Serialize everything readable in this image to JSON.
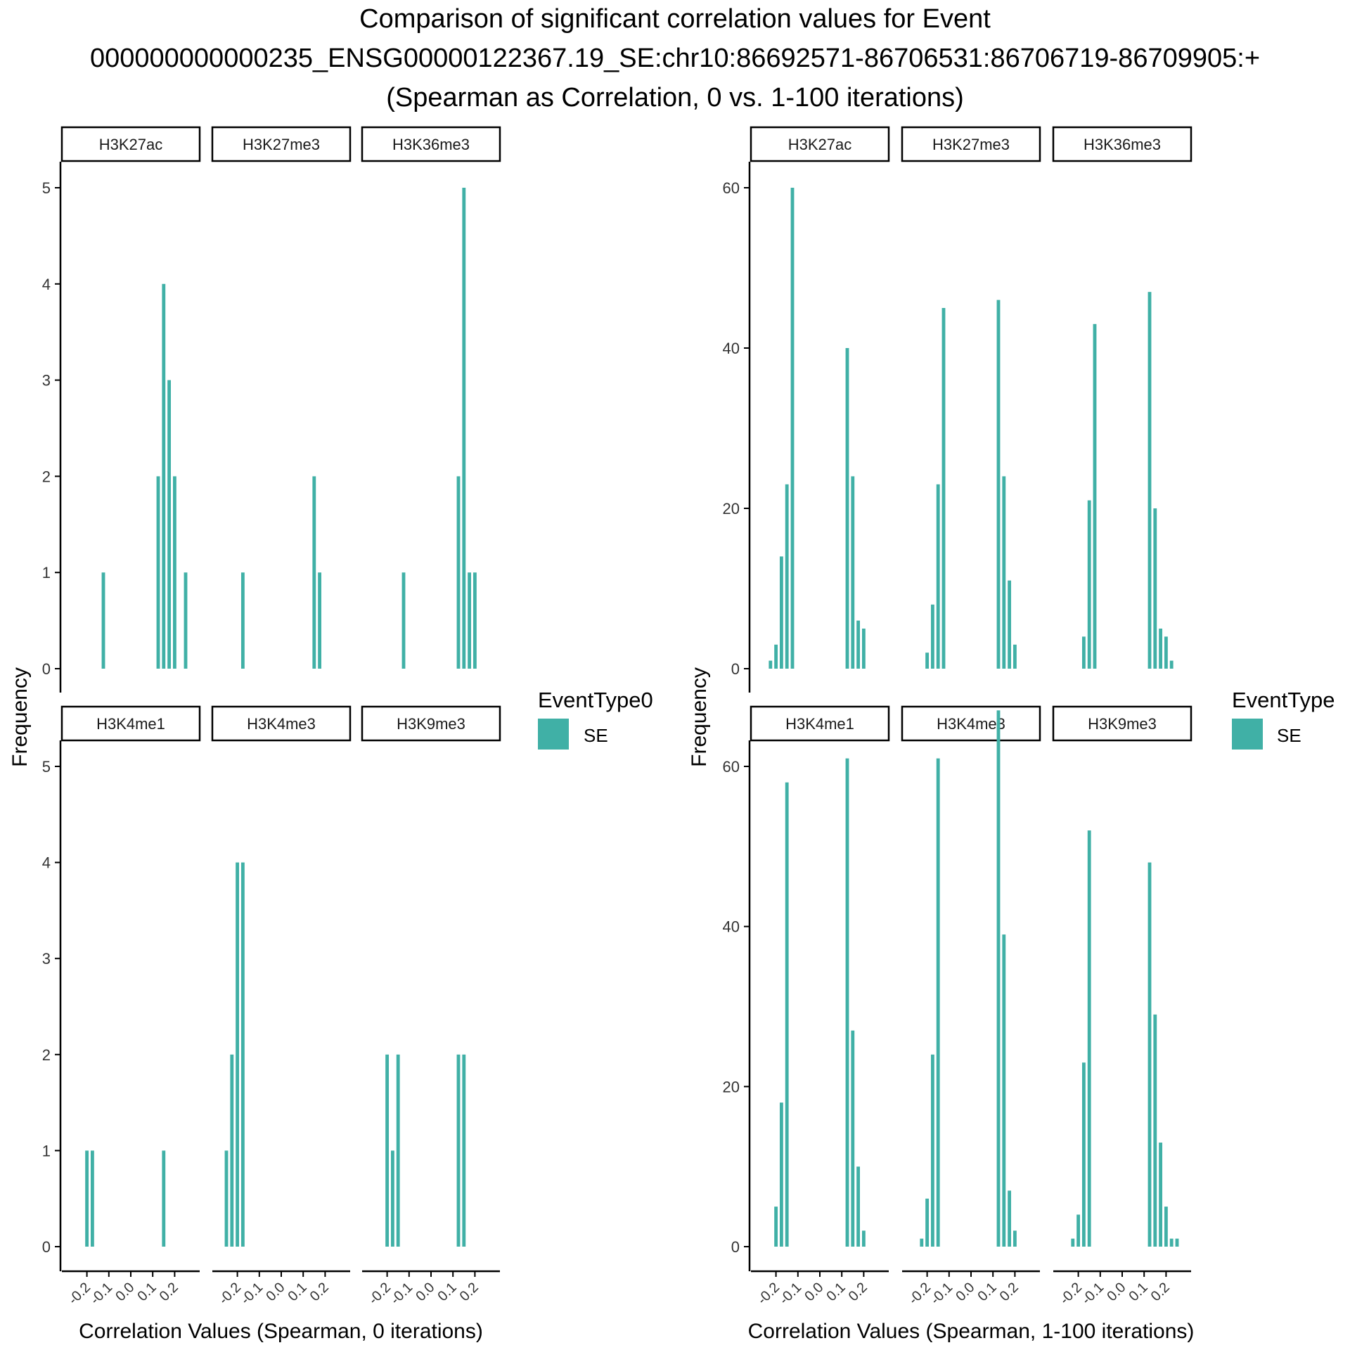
{
  "title_lines": [
    "Comparison of significant correlation values for Event",
    "000000000000235_ENSG00000122367.19_SE:chr10:86692571-86706531:86706719-86709905:+",
    "(Spearman as Correlation, 0 vs. 1-100 iterations)"
  ],
  "colors": {
    "bar": "#40B0A6",
    "axis": "#000000",
    "text": "#333333"
  },
  "facet_labels": [
    "H3K27ac",
    "H3K27me3",
    "H3K36me3",
    "H3K4me1",
    "H3K4me3",
    "H3K9me3"
  ],
  "xtick_labels": [
    "-0.2",
    "-0.1",
    "0.0",
    "0.1",
    "0.2"
  ],
  "chart_data": [
    {
      "type": "bar",
      "xlabel": "Correlation Values (Spearman, 0 iterations)",
      "ylabel": "Frequency",
      "legend": {
        "title": "EventType0",
        "entries": [
          {
            "label": "SE",
            "color": "#40B0A6"
          }
        ]
      },
      "xlim": [
        -0.25,
        0.25
      ],
      "ylim": [
        0,
        5.25
      ],
      "yticks": [
        0,
        1,
        2,
        3,
        4,
        5
      ],
      "bin_width": 0.025,
      "facets": [
        {
          "label": "H3K27ac",
          "bars": [
            [
              -0.125,
              1
            ],
            [
              0.125,
              2
            ],
            [
              0.15,
              4
            ],
            [
              0.175,
              3
            ],
            [
              0.2,
              2
            ],
            [
              0.25,
              1
            ]
          ]
        },
        {
          "label": "H3K27me3",
          "bars": [
            [
              -0.175,
              1
            ],
            [
              0.15,
              2
            ],
            [
              0.175,
              1
            ]
          ]
        },
        {
          "label": "H3K36me3",
          "bars": [
            [
              -0.125,
              1
            ],
            [
              0.125,
              2
            ],
            [
              0.15,
              5
            ],
            [
              0.175,
              1
            ],
            [
              0.2,
              1
            ]
          ]
        },
        {
          "label": "H3K4me1",
          "bars": [
            [
              -0.2,
              1
            ],
            [
              -0.175,
              1
            ],
            [
              0.15,
              1
            ]
          ]
        },
        {
          "label": "H3K4me3",
          "bars": [
            [
              -0.25,
              1
            ],
            [
              -0.225,
              2
            ],
            [
              -0.2,
              4
            ],
            [
              -0.175,
              4
            ]
          ]
        },
        {
          "label": "H3K9me3",
          "bars": [
            [
              -0.2,
              2
            ],
            [
              -0.175,
              1
            ],
            [
              -0.15,
              2
            ],
            [
              0.125,
              2
            ],
            [
              0.15,
              2
            ]
          ]
        }
      ]
    },
    {
      "type": "bar",
      "xlabel": "Correlation Values (Spearman, 1-100 iterations)",
      "ylabel": "Frequency",
      "legend": {
        "title": "EventType",
        "entries": [
          {
            "label": "SE",
            "color": "#40B0A6"
          }
        ]
      },
      "xlim": [
        -0.25,
        0.25
      ],
      "ylim": [
        0,
        70
      ],
      "yticks": [
        0,
        20,
        40,
        60
      ],
      "bin_width": 0.025,
      "facets": [
        {
          "label": "H3K27ac",
          "bars": [
            [
              -0.225,
              1
            ],
            [
              -0.2,
              3
            ],
            [
              -0.175,
              14
            ],
            [
              -0.15,
              23
            ],
            [
              -0.125,
              60
            ],
            [
              0.125,
              40
            ],
            [
              0.15,
              24
            ],
            [
              0.175,
              6
            ],
            [
              0.2,
              5
            ]
          ]
        },
        {
          "label": "H3K27me3",
          "bars": [
            [
              -0.2,
              2
            ],
            [
              -0.175,
              8
            ],
            [
              -0.15,
              23
            ],
            [
              -0.125,
              45
            ],
            [
              0.125,
              46
            ],
            [
              0.15,
              24
            ],
            [
              0.175,
              11
            ],
            [
              0.2,
              3
            ]
          ]
        },
        {
          "label": "H3K36me3",
          "bars": [
            [
              -0.175,
              4
            ],
            [
              -0.15,
              21
            ],
            [
              -0.125,
              43
            ],
            [
              0.125,
              47
            ],
            [
              0.15,
              20
            ],
            [
              0.175,
              5
            ],
            [
              0.2,
              4
            ],
            [
              0.225,
              1
            ]
          ]
        },
        {
          "label": "H3K4me1",
          "bars": [
            [
              -0.2,
              5
            ],
            [
              -0.175,
              18
            ],
            [
              -0.15,
              58
            ],
            [
              0.125,
              61
            ],
            [
              0.15,
              27
            ],
            [
              0.175,
              10
            ],
            [
              0.2,
              2
            ]
          ]
        },
        {
          "label": "H3K4me3",
          "bars": [
            [
              -0.225,
              1
            ],
            [
              -0.2,
              6
            ],
            [
              -0.175,
              24
            ],
            [
              -0.15,
              61
            ],
            [
              0.125,
              67
            ],
            [
              0.15,
              39
            ],
            [
              0.175,
              7
            ],
            [
              0.2,
              2
            ]
          ]
        },
        {
          "label": "H3K9me3",
          "bars": [
            [
              -0.225,
              1
            ],
            [
              -0.2,
              4
            ],
            [
              -0.175,
              23
            ],
            [
              -0.15,
              52
            ],
            [
              0.125,
              48
            ],
            [
              0.15,
              29
            ],
            [
              0.175,
              13
            ],
            [
              0.2,
              5
            ],
            [
              0.225,
              1
            ],
            [
              0.25,
              1
            ]
          ]
        }
      ]
    }
  ]
}
